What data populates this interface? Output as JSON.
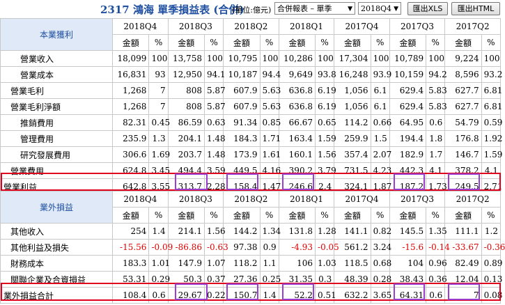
{
  "header": {
    "title": "2317 鴻海 單季損益表 (合併)",
    "unit": "(單位:億元)",
    "report_select": "合併報表 – 單季",
    "period_select": "2018Q4",
    "xls_button": "匯出XLS",
    "html_button": "匯出HTML"
  },
  "colors": {
    "section_bg": "#dfe9f7",
    "section_text": "#1f4fa0",
    "highlight_red": "#e0001b",
    "highlight_purple": "#9b3fd1",
    "negative": "#e00000"
  },
  "col_headers": {
    "amount": "金額",
    "pct": "%"
  },
  "quarters": [
    "2018Q4",
    "2018Q3",
    "2018Q2",
    "2018Q1",
    "2017Q4",
    "2017Q3",
    "2017Q2"
  ],
  "section1": {
    "title": "本業獲利",
    "rows": [
      {
        "label": "營業收入",
        "indent": 2,
        "cells": [
          "18,099",
          "100",
          "13,758",
          "100",
          "10,795",
          "100",
          "10,286",
          "100",
          "17,304",
          "100",
          "10,789",
          "100",
          "9,224",
          "100"
        ]
      },
      {
        "label": "營業成本",
        "indent": 2,
        "cells": [
          "16,831",
          "93",
          "12,950",
          "94.1",
          "10,187",
          "94.4",
          "9,649",
          "93.8",
          "16,248",
          "93.9",
          "10,159",
          "94.2",
          "8,596",
          "93.2"
        ]
      },
      {
        "label": "營業毛利",
        "indent": 1,
        "cells": [
          "1,268",
          "7",
          "808",
          "5.87",
          "607.9",
          "5.63",
          "636.8",
          "6.19",
          "1,056",
          "6.1",
          "629.4",
          "5.83",
          "627.7",
          "6.81"
        ]
      },
      {
        "label": "營業毛利淨額",
        "indent": 1,
        "cells": [
          "1,268",
          "7",
          "808",
          "5.87",
          "607.9",
          "5.63",
          "636.8",
          "6.19",
          "1,056",
          "6.1",
          "629.4",
          "5.83",
          "627.7",
          "6.81"
        ]
      },
      {
        "label": "推銷費用",
        "indent": 2,
        "cells": [
          "82.31",
          "0.45",
          "86.59",
          "0.63",
          "91.34",
          "0.85",
          "66.67",
          "0.65",
          "114.2",
          "0.66",
          "64.95",
          "0.6",
          "54.79",
          "0.59"
        ]
      },
      {
        "label": "管理費用",
        "indent": 2,
        "cells": [
          "235.9",
          "1.3",
          "204.1",
          "1.48",
          "184.3",
          "1.71",
          "163.4",
          "1.59",
          "259.9",
          "1.5",
          "194.4",
          "1.8",
          "176.8",
          "1.92"
        ]
      },
      {
        "label": "研究發展費用",
        "indent": 2,
        "cells": [
          "306.6",
          "1.69",
          "203.7",
          "1.48",
          "173.9",
          "1.61",
          "160.1",
          "1.56",
          "357.4",
          "2.07",
          "182.9",
          "1.7",
          "146.7",
          "1.59"
        ]
      },
      {
        "label": "營業費用",
        "indent": 1,
        "cells": [
          "624.8",
          "3.45",
          "494.4",
          "3.59",
          "449.5",
          "4.16",
          "390.2",
          "3.79",
          "731.5",
          "4.23",
          "442.3",
          "4.1",
          "378.2",
          "4.1"
        ]
      },
      {
        "label": "營業利益",
        "indent": 0,
        "cells": [
          "642.8",
          "3.55",
          "313.7",
          "2.28",
          "158.4",
          "1.47",
          "246.6",
          "2.4",
          "324.1",
          "1.87",
          "187.2",
          "1.73",
          "249.5",
          "2.71"
        ]
      }
    ]
  },
  "section2": {
    "title": "業外損益",
    "rows": [
      {
        "label": "其他收入",
        "indent": 1,
        "cells": [
          "254",
          "1.4",
          "214.1",
          "1.56",
          "144.2",
          "1.34",
          "131.8",
          "1.28",
          "141.1",
          "0.82",
          "145.5",
          "1.35",
          "111.1",
          "1.2"
        ]
      },
      {
        "label": "其他利益及損失",
        "indent": 1,
        "cells": [
          "-15.56",
          "-0.09",
          "-86.86",
          "-0.63",
          "97.38",
          "0.9",
          "-4.93",
          "-0.05",
          "561.2",
          "3.24",
          "-15.6",
          "-0.14",
          "-33.67",
          "-0.36"
        ]
      },
      {
        "label": "財務成本",
        "indent": 1,
        "cells": [
          "183.3",
          "1.01",
          "147.9",
          "1.07",
          "118.2",
          "1.1",
          "106",
          "1.03",
          "118.5",
          "0.68",
          "104",
          "0.96",
          "82.49",
          "0.89"
        ]
      },
      {
        "label": "關聯企業及合資損益",
        "indent": 1,
        "cells": [
          "53.31",
          "0.29",
          "50.3",
          "0.37",
          "27.36",
          "0.25",
          "31.35",
          "0.3",
          "48.39",
          "0.28",
          "38.43",
          "0.36",
          "12.04",
          "0.13"
        ]
      },
      {
        "label": "業外損益合計",
        "indent": 0,
        "cells": [
          "108.4",
          "0.6",
          "29.67",
          "0.22",
          "150.7",
          "1.4",
          "52.2",
          "0.51",
          "632.2",
          "3.65",
          "64.31",
          "0.6",
          "7",
          "0.08"
        ]
      }
    ]
  }
}
